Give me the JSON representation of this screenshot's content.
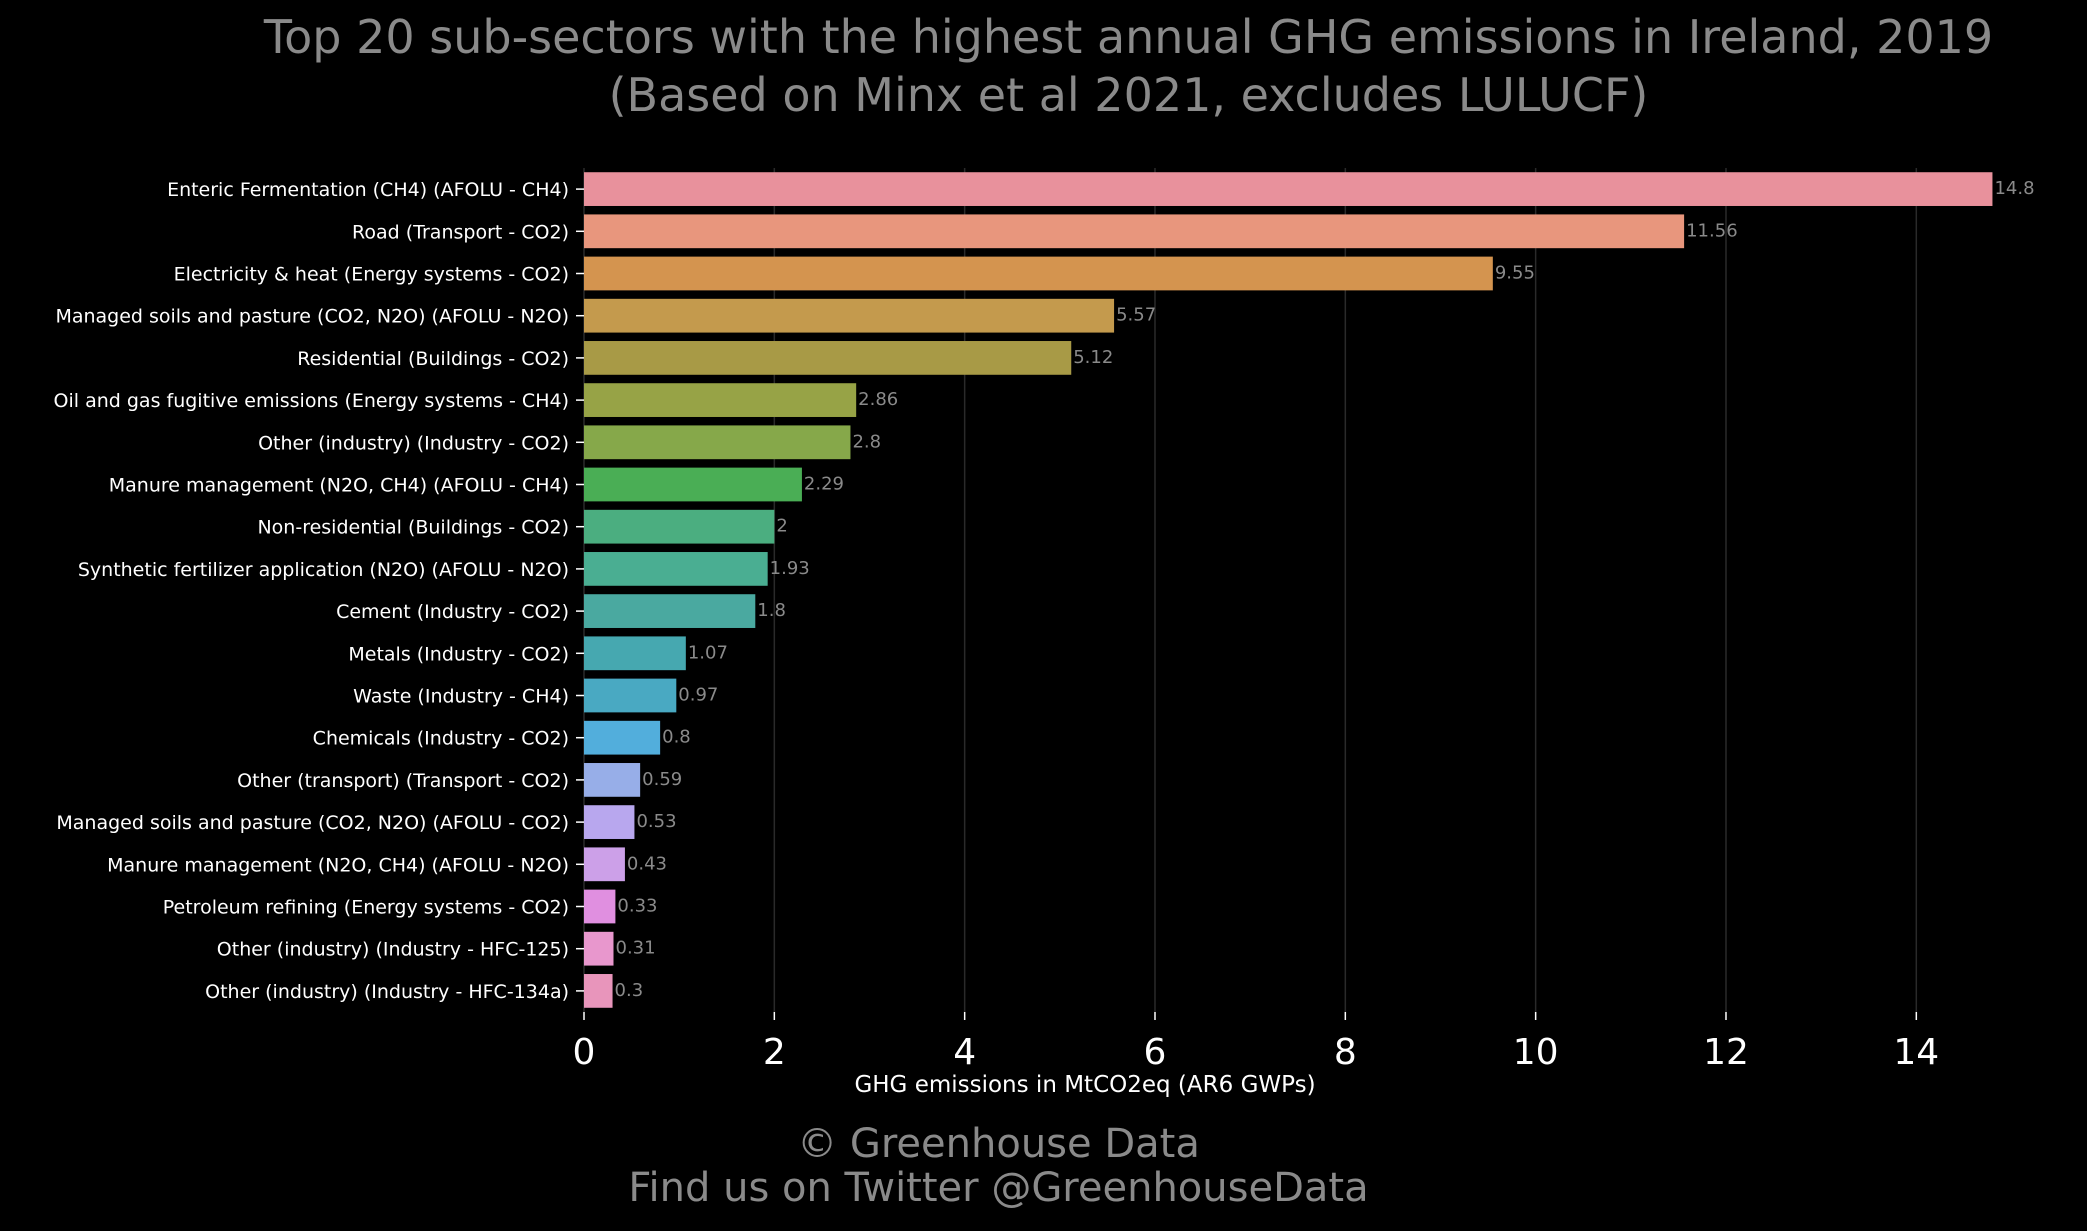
{
  "header": {
    "title_line1": "Top 20 sub-sectors with the highest annual GHG emissions in Ireland, 2019",
    "title_line2": "(Based on Minx et al 2021, excludes LULUCF)"
  },
  "footer": {
    "line1": "© Greenhouse Data",
    "line2": "Find us on Twitter @GreenhouseData"
  },
  "colors": {
    "background": "#000000",
    "grid": "#2a2a2a",
    "tick_label": "#ffffff",
    "category_label": "#ffffff",
    "value_label": "#8a8a8a",
    "title": "#8a8a8a"
  },
  "chart_data": {
    "type": "bar",
    "orientation": "horizontal",
    "xlabel": "GHG emissions in MtCO2eq (AR6 GWPs)",
    "xlim": [
      0,
      15.1
    ],
    "xticks": [
      0,
      2,
      4,
      6,
      8,
      10,
      12,
      14
    ],
    "grid": "vertical",
    "categories": [
      "Enteric Fermentation (CH4) (AFOLU - CH4)",
      "Road (Transport - CO2)",
      "Electricity & heat (Energy systems - CO2)",
      "Managed soils and pasture (CO2, N2O) (AFOLU - N2O)",
      "Residential (Buildings - CO2)",
      "Oil and gas fugitive emissions (Energy systems - CH4)",
      "Other (industry) (Industry - CO2)",
      "Manure management (N2O, CH4) (AFOLU - CH4)",
      "Non-residential (Buildings - CO2)",
      "Synthetic fertilizer application (N2O) (AFOLU - N2O)",
      "Cement (Industry - CO2)",
      "Metals (Industry - CO2)",
      "Waste (Industry - CH4)",
      "Chemicals (Industry - CO2)",
      "Other (transport) (Transport - CO2)",
      "Managed soils and pasture (CO2, N2O) (AFOLU - CO2)",
      "Manure management (N2O, CH4) (AFOLU - N2O)",
      "Petroleum refining (Energy systems - CO2)",
      "Other (industry) (Industry - HFC-125)",
      "Other (industry) (Industry - HFC-134a)"
    ],
    "values": [
      14.8,
      11.56,
      9.55,
      5.57,
      5.12,
      2.86,
      2.8,
      2.29,
      2,
      1.93,
      1.8,
      1.07,
      0.97,
      0.8,
      0.59,
      0.53,
      0.43,
      0.33,
      0.31,
      0.3
    ],
    "value_labels": [
      "14.8",
      "11.56",
      "9.55",
      "5.57",
      "5.12",
      "2.86",
      "2.8",
      "2.29",
      "2",
      "1.93",
      "1.8",
      "1.07",
      "0.97",
      "0.8",
      "0.59",
      "0.53",
      "0.43",
      "0.33",
      "0.31",
      "0.3"
    ],
    "bar_colors": [
      "#e8919c",
      "#e8967d",
      "#d4944f",
      "#c49a4d",
      "#a89a46",
      "#97a346",
      "#86a84a",
      "#4aae55",
      "#4bae80",
      "#4aae92",
      "#4aa9a0",
      "#46a8b0",
      "#49a9c2",
      "#52aedc",
      "#97aee8",
      "#b8a7ee",
      "#cca0e8",
      "#e08fe0",
      "#e897cd",
      "#e895bb"
    ]
  }
}
